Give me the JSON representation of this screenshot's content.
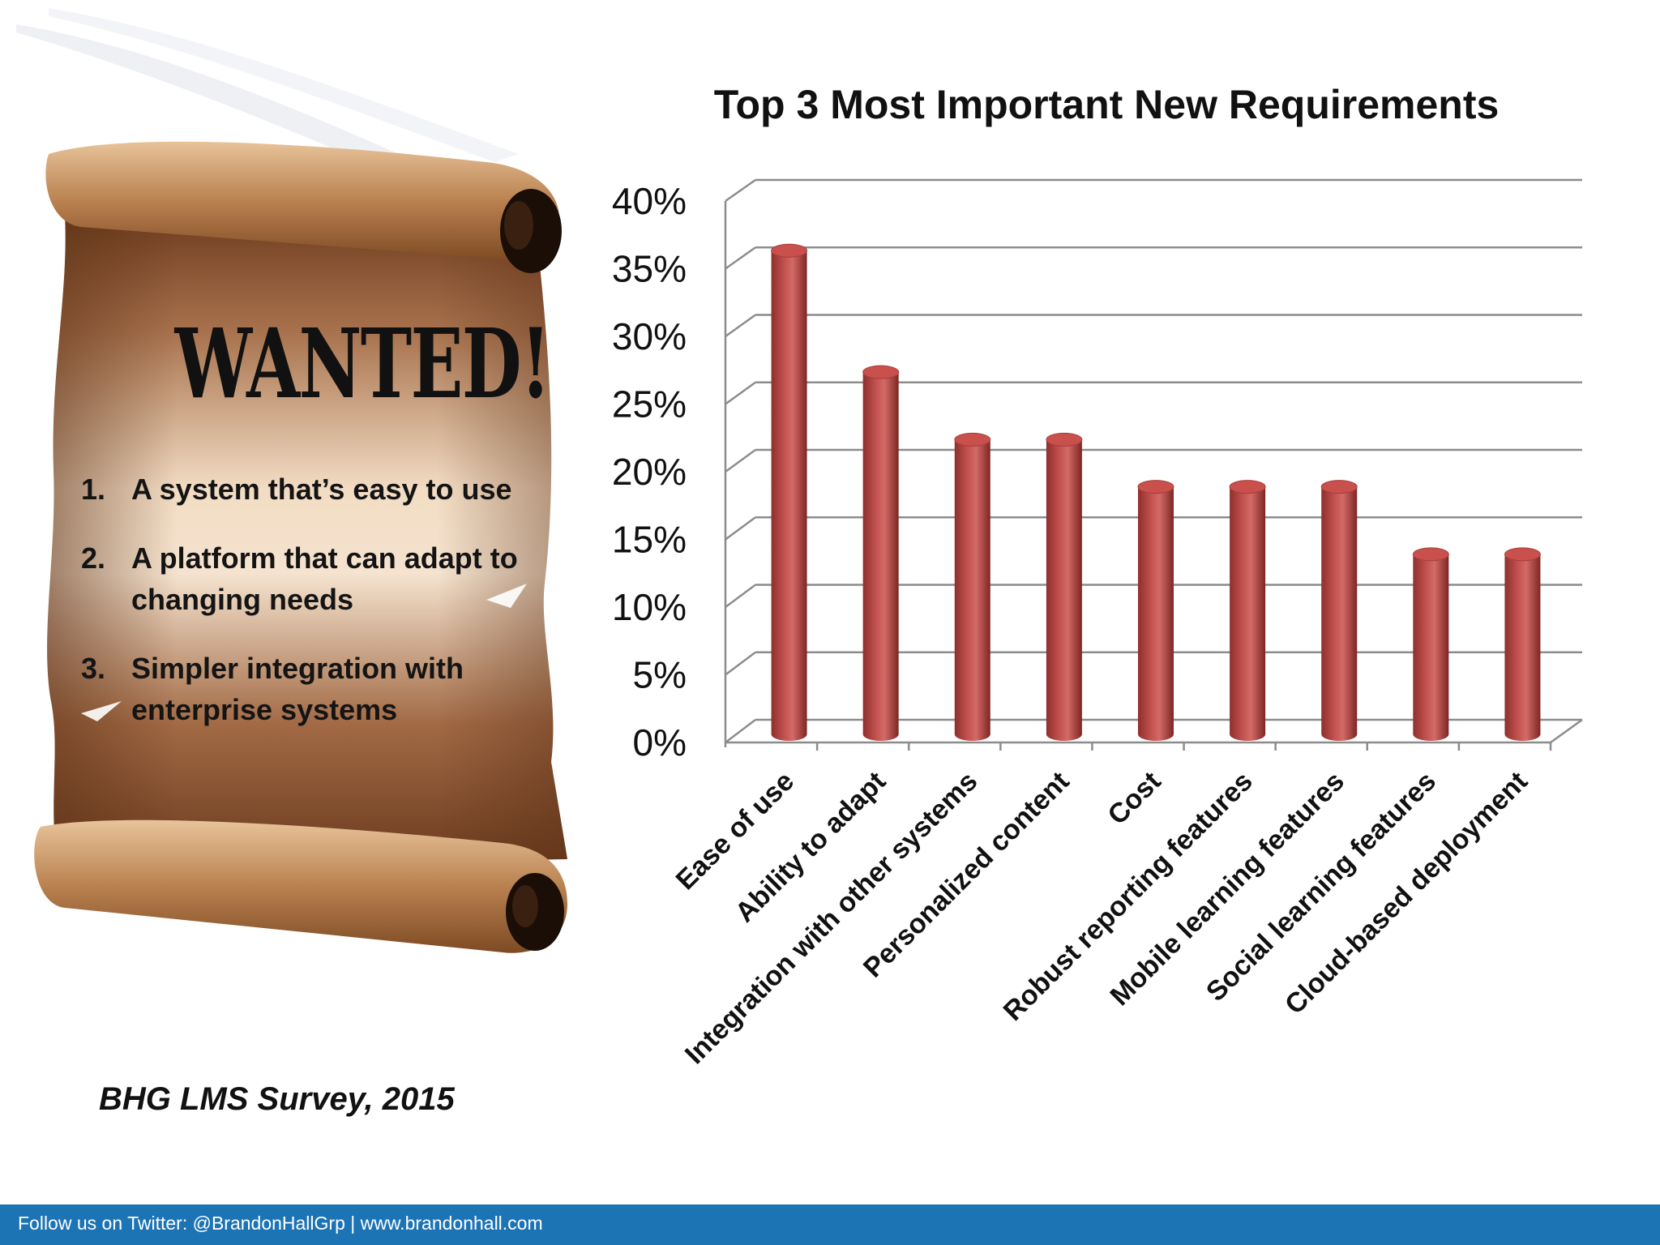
{
  "poster": {
    "heading": "WANTED!",
    "items": [
      {
        "num": "1.",
        "text": "A system that’s easy to use"
      },
      {
        "num": "2.",
        "text": "A platform that can adapt to changing needs"
      },
      {
        "num": "3.",
        "text": "Simpler integration with enterprise systems"
      }
    ]
  },
  "source": "BHG LMS Survey, 2015",
  "footer": "Follow us on Twitter: @BrandonHallGrp | www.brandonhall.com",
  "chart_data": {
    "type": "bar",
    "title": "Top 3 Most Important New Requirements",
    "categories": [
      "Ease of use",
      "Ability to adapt",
      "Integration with other systems",
      "Personalized content",
      "Cost",
      "Robust reporting features",
      "Mobile learning features",
      "Social learning features",
      "Cloud-based deployment"
    ],
    "values": [
      35,
      26,
      21,
      21,
      17.5,
      17.5,
      17.5,
      12.5,
      12.5
    ],
    "ylim": [
      0,
      40
    ],
    "yticks": [
      "0%",
      "5%",
      "10%",
      "15%",
      "20%",
      "25%",
      "30%",
      "35%",
      "40%"
    ],
    "grid": true,
    "bar_color": "#c0504d"
  }
}
